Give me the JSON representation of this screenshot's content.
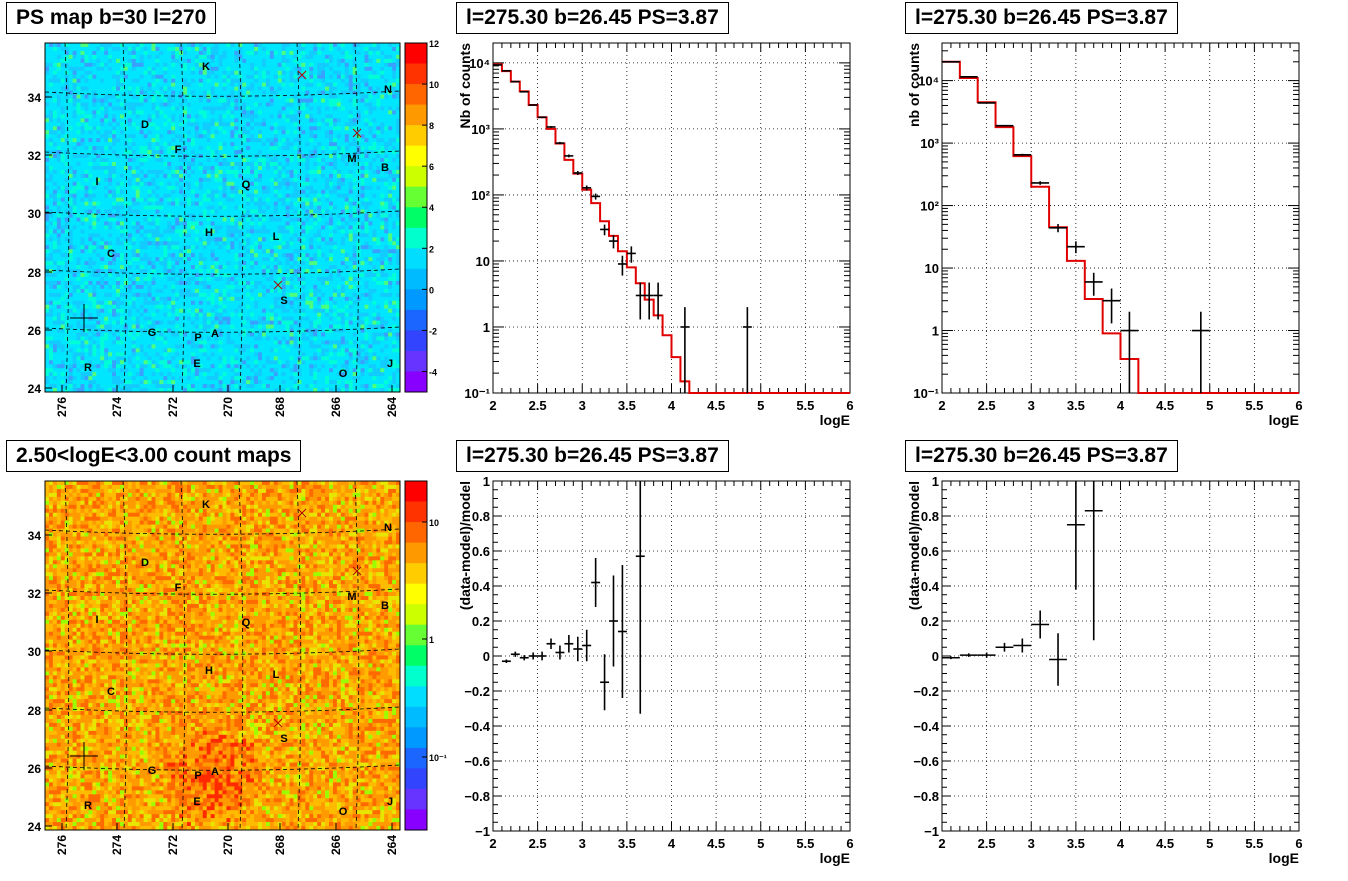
{
  "palette": {
    "background": "#ffffff",
    "axis": "#000000",
    "model_line": "#e00000",
    "data_marker": "#000000",
    "map_sky": "#00e6ff",
    "map_orange": "#ff8800"
  },
  "maps": [
    {
      "title": "PS map b=30 l=270",
      "x_tick_labels": [
        "276",
        "274",
        "272",
        "270",
        "268",
        "266",
        "264"
      ],
      "y_tick_labels": [
        "24",
        "26",
        "28",
        "30",
        "32",
        "34"
      ],
      "colorbar_labels": [
        "12",
        "10",
        "8",
        "6",
        "4",
        "2",
        "0",
        "-2",
        "-4"
      ],
      "colorbar_scale": "linear",
      "z_range": [
        -5,
        12
      ],
      "source_labels": [
        "K",
        "N",
        "D",
        "F",
        "M",
        "B",
        "I",
        "Q",
        "H",
        "L",
        "C",
        "S",
        "G",
        "P",
        "A",
        "E",
        "R",
        "O",
        "J"
      ]
    },
    {
      "title": "2.50<logE<3.00 count maps",
      "x_tick_labels": [
        "276",
        "274",
        "272",
        "270",
        "268",
        "266",
        "264"
      ],
      "y_tick_labels": [
        "24",
        "26",
        "28",
        "30",
        "32",
        "34"
      ],
      "colorbar_labels": [
        "10",
        "1",
        "10⁻¹"
      ],
      "colorbar_scale": "log",
      "source_labels": [
        "K",
        "N",
        "D",
        "F",
        "M",
        "B",
        "I",
        "Q",
        "H",
        "L",
        "C",
        "S",
        "G",
        "P",
        "A",
        "E",
        "R",
        "O",
        "J"
      ]
    }
  ],
  "chart_data": [
    {
      "type": "line",
      "title": "l=275.30 b=26.45 PS=3.87",
      "xlabel": "logE",
      "ylabel": "Nb of counts",
      "ylog": true,
      "xlim": [
        2,
        6
      ],
      "ylim": [
        0.1,
        20000
      ],
      "grid": true,
      "x_tick_labels": [
        "2",
        "2.5",
        "3",
        "3.5",
        "4",
        "4.5",
        "5",
        "5.5",
        "6"
      ],
      "y_tick_labels": [
        "10⁻¹",
        "1",
        "10",
        "10²",
        "10³",
        "10⁴"
      ],
      "model_bin_edges": [
        2.0,
        2.1,
        2.2,
        2.3,
        2.4,
        2.5,
        2.6,
        2.7,
        2.8,
        2.9,
        3.0,
        3.1,
        3.2,
        3.3,
        3.4,
        3.5,
        3.6,
        3.7,
        3.8,
        3.9,
        4.0,
        4.1,
        4.2,
        6.0
      ],
      "model_values": [
        9500,
        7500,
        5200,
        3700,
        2300,
        1500,
        1000,
        600,
        340,
        210,
        120,
        75,
        40,
        24,
        14,
        8,
        4.6,
        2.6,
        1.5,
        0.75,
        0.35,
        0.15,
        0.1
      ],
      "points": [
        {
          "x": 2.05,
          "xerr": 0.05,
          "y": 9300,
          "yerr": 100
        },
        {
          "x": 2.15,
          "xerr": 0.05,
          "y": 7600,
          "yerr": 90
        },
        {
          "x": 2.25,
          "xerr": 0.05,
          "y": 5200,
          "yerr": 75
        },
        {
          "x": 2.35,
          "xerr": 0.05,
          "y": 3650,
          "yerr": 60
        },
        {
          "x": 2.45,
          "xerr": 0.05,
          "y": 2300,
          "yerr": 50
        },
        {
          "x": 2.55,
          "xerr": 0.05,
          "y": 1500,
          "yerr": 40
        },
        {
          "x": 2.65,
          "xerr": 0.05,
          "y": 1070,
          "yerr": 33
        },
        {
          "x": 2.75,
          "xerr": 0.05,
          "y": 610,
          "yerr": 25
        },
        {
          "x": 2.85,
          "xerr": 0.05,
          "y": 390,
          "yerr": 20
        },
        {
          "x": 2.95,
          "xerr": 0.05,
          "y": 215,
          "yerr": 15
        },
        {
          "x": 3.05,
          "xerr": 0.05,
          "y": 128,
          "yerr": 11
        },
        {
          "x": 3.15,
          "xerr": 0.05,
          "y": 95,
          "yerr": 10
        },
        {
          "x": 3.25,
          "xerr": 0.05,
          "y": 30,
          "yerr": 5.5
        },
        {
          "x": 3.35,
          "xerr": 0.05,
          "y": 20,
          "yerr": 4.5
        },
        {
          "x": 3.45,
          "xerr": 0.05,
          "y": 9,
          "yerr": 3
        },
        {
          "x": 3.55,
          "xerr": 0.05,
          "y": 13,
          "yerr": 3.6
        },
        {
          "x": 3.65,
          "xerr": 0.05,
          "y": 3,
          "yerr": 1.7
        },
        {
          "x": 3.75,
          "xerr": 0.05,
          "y": 3,
          "yerr": 1.7
        },
        {
          "x": 3.85,
          "xerr": 0.05,
          "y": 3,
          "yerr": 1.7
        },
        {
          "x": 4.15,
          "xerr": 0.05,
          "y": 1,
          "yerr": 1
        },
        {
          "x": 4.85,
          "xerr": 0.05,
          "y": 1,
          "yerr": 1
        }
      ]
    },
    {
      "type": "line",
      "title": "l=275.30 b=26.45 PS=3.87",
      "xlabel": "logE",
      "ylabel": "nb of counts",
      "ylog": true,
      "xlim": [
        2,
        6
      ],
      "ylim": [
        0.1,
        40000
      ],
      "grid": true,
      "x_tick_labels": [
        "2",
        "2.5",
        "3",
        "3.5",
        "4",
        "4.5",
        "5",
        "5.5",
        "6"
      ],
      "y_tick_labels": [
        "10⁻¹",
        "1",
        "10",
        "10²",
        "10³",
        "10⁴"
      ],
      "model_bin_edges": [
        2.0,
        2.2,
        2.4,
        2.6,
        2.8,
        3.0,
        3.2,
        3.4,
        3.6,
        3.8,
        4.0,
        4.2,
        6.0
      ],
      "model_values": [
        20000,
        11000,
        4500,
        1800,
        620,
        200,
        45,
        13,
        3.2,
        0.9,
        0.35,
        0.1
      ],
      "points": [
        {
          "x": 2.1,
          "xerr": 0.1,
          "y": 20000,
          "yerr": 140
        },
        {
          "x": 2.3,
          "xerr": 0.1,
          "y": 11500,
          "yerr": 110
        },
        {
          "x": 2.5,
          "xerr": 0.1,
          "y": 4400,
          "yerr": 66
        },
        {
          "x": 2.7,
          "xerr": 0.1,
          "y": 1900,
          "yerr": 44
        },
        {
          "x": 2.9,
          "xerr": 0.1,
          "y": 650,
          "yerr": 25
        },
        {
          "x": 3.1,
          "xerr": 0.1,
          "y": 230,
          "yerr": 15
        },
        {
          "x": 3.3,
          "xerr": 0.1,
          "y": 44,
          "yerr": 6.6
        },
        {
          "x": 3.5,
          "xerr": 0.1,
          "y": 22,
          "yerr": 4.7
        },
        {
          "x": 3.7,
          "xerr": 0.1,
          "y": 6,
          "yerr": 2.4
        },
        {
          "x": 3.9,
          "xerr": 0.1,
          "y": 3,
          "yerr": 1.7
        },
        {
          "x": 4.1,
          "xerr": 0.1,
          "y": 1,
          "yerr": 1
        },
        {
          "x": 4.9,
          "xerr": 0.1,
          "y": 1,
          "yerr": 1
        }
      ]
    },
    {
      "type": "scatter",
      "title": "l=275.30 b=26.45 PS=3.87",
      "xlabel": "logE",
      "ylabel": "(data-model)/model",
      "xlim": [
        2,
        6
      ],
      "ylim": [
        -1,
        1
      ],
      "grid": true,
      "x_tick_labels": [
        "2",
        "2.5",
        "3",
        "3.5",
        "4",
        "4.5",
        "5",
        "5.5",
        "6"
      ],
      "y_tick_labels": [
        "−1",
        "−0.8",
        "−0.6",
        "−0.4",
        "−0.2",
        "0",
        "0.2",
        "0.4",
        "0.6",
        "0.8",
        "1"
      ],
      "points": [
        {
          "x": 2.15,
          "xerr": 0.05,
          "y": -0.03,
          "yerr": 0.01
        },
        {
          "x": 2.25,
          "xerr": 0.05,
          "y": 0.01,
          "yerr": 0.015
        },
        {
          "x": 2.35,
          "xerr": 0.05,
          "y": -0.01,
          "yerr": 0.015
        },
        {
          "x": 2.45,
          "xerr": 0.05,
          "y": 0.0,
          "yerr": 0.02
        },
        {
          "x": 2.55,
          "xerr": 0.05,
          "y": 0.0,
          "yerr": 0.025
        },
        {
          "x": 2.65,
          "xerr": 0.05,
          "y": 0.07,
          "yerr": 0.03
        },
        {
          "x": 2.75,
          "xerr": 0.05,
          "y": 0.02,
          "yerr": 0.04
        },
        {
          "x": 2.85,
          "xerr": 0.05,
          "y": 0.07,
          "yerr": 0.05
        },
        {
          "x": 2.95,
          "xerr": 0.05,
          "y": 0.04,
          "yerr": 0.07
        },
        {
          "x": 3.05,
          "xerr": 0.05,
          "y": 0.06,
          "yerr": 0.09
        },
        {
          "x": 3.15,
          "xerr": 0.05,
          "y": 0.42,
          "yerr": 0.14
        },
        {
          "x": 3.25,
          "xerr": 0.05,
          "y": -0.15,
          "yerr": 0.16
        },
        {
          "x": 3.35,
          "xerr": 0.05,
          "y": 0.2,
          "yerr": 0.26
        },
        {
          "x": 3.45,
          "xerr": 0.05,
          "y": 0.14,
          "yerr": 0.38
        },
        {
          "x": 3.65,
          "xerr": 0.05,
          "y": 0.57,
          "yerr": 0.9
        }
      ]
    },
    {
      "type": "scatter",
      "title": "l=275.30 b=26.45 PS=3.87",
      "xlabel": "logE",
      "ylabel": "(data-model)/model",
      "xlim": [
        2,
        6
      ],
      "ylim": [
        -1,
        1
      ],
      "grid": true,
      "x_tick_labels": [
        "2",
        "2.5",
        "3",
        "3.5",
        "4",
        "4.5",
        "5",
        "5.5",
        "6"
      ],
      "y_tick_labels": [
        "−1",
        "−0.8",
        "−0.6",
        "−0.4",
        "−0.2",
        "0",
        "0.2",
        "0.4",
        "0.6",
        "0.8",
        "1"
      ],
      "points": [
        {
          "x": 2.1,
          "xerr": 0.1,
          "y": -0.01,
          "yerr": 0.008
        },
        {
          "x": 2.3,
          "xerr": 0.1,
          "y": 0.005,
          "yerr": 0.01
        },
        {
          "x": 2.5,
          "xerr": 0.1,
          "y": 0.005,
          "yerr": 0.015
        },
        {
          "x": 2.7,
          "xerr": 0.1,
          "y": 0.05,
          "yerr": 0.025
        },
        {
          "x": 2.9,
          "xerr": 0.1,
          "y": 0.06,
          "yerr": 0.04
        },
        {
          "x": 3.1,
          "xerr": 0.1,
          "y": 0.18,
          "yerr": 0.08
        },
        {
          "x": 3.3,
          "xerr": 0.1,
          "y": -0.02,
          "yerr": 0.15
        },
        {
          "x": 3.5,
          "xerr": 0.1,
          "y": 0.75,
          "yerr": 0.37
        },
        {
          "x": 3.7,
          "xerr": 0.1,
          "y": 0.83,
          "yerr": 0.74
        }
      ]
    }
  ]
}
